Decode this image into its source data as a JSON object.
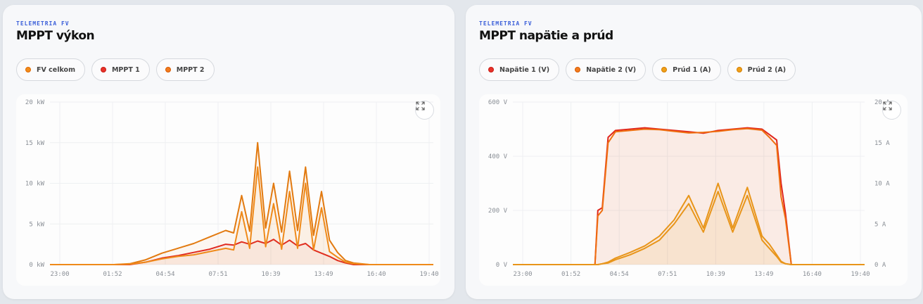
{
  "panels": [
    {
      "eyebrow": "TELEMETRIA FV",
      "title": "MPPT výkon",
      "legend": [
        {
          "label": "FV celkom",
          "color": "#f28c1c",
          "border": "#e06a00"
        },
        {
          "label": "MPPT 1",
          "color": "#e8322a",
          "border": "#c91c14"
        },
        {
          "label": "MPPT 2",
          "color": "#f27b1f",
          "border": "#d85a00"
        }
      ]
    },
    {
      "eyebrow": "TELEMETRIA FV",
      "title": "MPPT napätie a prúd",
      "legend": [
        {
          "label": "Napätie 1 (V)",
          "color": "#e8322a",
          "border": "#c91c14"
        },
        {
          "label": "Napätie 2 (V)",
          "color": "#f27b1f",
          "border": "#d85a00"
        },
        {
          "label": "Prúd 1 (A)",
          "color": "#f0a01a",
          "border": "#d47e00"
        },
        {
          "label": "Prúd 2 (A)",
          "color": "#f0a01a",
          "border": "#d47e00"
        }
      ]
    }
  ],
  "chart_data": [
    {
      "type": "line",
      "title": "MPPT výkon",
      "xlabel": "",
      "ylabel": "",
      "x_ticks": [
        "23:00",
        "01:52",
        "04:54",
        "07:51",
        "10:39",
        "13:49",
        "16:40",
        "19:40"
      ],
      "y_ticks": [
        "0 kW",
        "5 kW",
        "10 kW",
        "15 kW",
        "20 kW"
      ],
      "ylim": [
        0,
        20
      ],
      "x_hours": [
        0,
        4,
        5,
        6,
        7,
        8,
        9,
        10,
        11,
        11.5,
        12,
        12.5,
        13,
        13.5,
        14,
        14.5,
        15,
        15.5,
        16,
        16.5,
        17,
        17.5,
        18,
        18.5,
        19,
        20,
        24
      ],
      "series": [
        {
          "name": "FV celkom",
          "color": "#e27a10",
          "values": [
            0,
            0,
            0.1,
            0.6,
            1.4,
            2.0,
            2.6,
            3.4,
            4.2,
            3.9,
            8.5,
            4.1,
            15.0,
            4.5,
            10.0,
            4.0,
            11.5,
            4.2,
            12.0,
            3.6,
            9.0,
            3.0,
            1.5,
            0.5,
            0.2,
            0,
            0
          ]
        },
        {
          "name": "MPPT 1",
          "color": "#e02a20",
          "values": [
            0,
            0,
            0,
            0.3,
            0.8,
            1.1,
            1.5,
            1.9,
            2.5,
            2.4,
            2.8,
            2.5,
            2.9,
            2.6,
            3.1,
            2.4,
            3.0,
            2.3,
            2.6,
            1.8,
            1.4,
            1.0,
            0.5,
            0.2,
            0,
            0,
            0
          ]
        },
        {
          "name": "MPPT 2",
          "color": "#ef8a1a",
          "values": [
            0,
            0,
            0.05,
            0.3,
            0.7,
            1.0,
            1.2,
            1.6,
            2.0,
            1.8,
            6.5,
            2.0,
            12.0,
            2.2,
            7.5,
            1.9,
            9.0,
            2.0,
            10.0,
            1.8,
            7.0,
            1.6,
            0.9,
            0.3,
            0.1,
            0,
            0
          ]
        }
      ]
    },
    {
      "type": "line",
      "title": "MPPT napätie a prúd",
      "xlabel": "",
      "ylabel": "",
      "x_ticks": [
        "23:00",
        "01:52",
        "04:54",
        "07:51",
        "10:39",
        "13:49",
        "16:40",
        "19:40"
      ],
      "y_ticks_left": [
        "0 V",
        "200 V",
        "400 V",
        "600 V"
      ],
      "y_ticks_right": [
        "0 A",
        "5 A",
        "10 A",
        "15 A",
        "20 A"
      ],
      "ylim_left": [
        0,
        600
      ],
      "ylim_right": [
        0,
        20
      ],
      "x_hours": [
        0,
        5.6,
        5.8,
        6.1,
        6.5,
        7,
        8,
        9,
        10,
        11,
        12,
        13,
        14,
        15,
        16,
        17,
        17.5,
        18,
        18.3,
        18.6,
        19,
        24
      ],
      "series": [
        {
          "name": "Napätie 1 (V)",
          "color": "#e0261c",
          "values": [
            0,
            0,
            200,
            210,
            470,
            495,
            500,
            505,
            500,
            495,
            490,
            485,
            495,
            500,
            505,
            500,
            480,
            460,
            300,
            190,
            0,
            0
          ]
        },
        {
          "name": "Napätie 2 (V)",
          "color": "#ef6f10",
          "values": [
            0,
            0,
            180,
            200,
            450,
            490,
            495,
            500,
            498,
            492,
            486,
            488,
            492,
            498,
            502,
            496,
            470,
            440,
            250,
            170,
            0,
            0
          ]
        },
        {
          "name": "Prúd 1 (A)",
          "color": "#e8951a",
          "values": [
            0,
            0,
            0,
            0.1,
            0.3,
            0.8,
            1.5,
            2.3,
            3.5,
            5.5,
            8.5,
            4.5,
            10.0,
            4.5,
            9.5,
            3.5,
            2.5,
            1.2,
            0.4,
            0.1,
            0,
            0
          ]
        },
        {
          "name": "Prúd 2 (A)",
          "color": "#e8951a",
          "values": [
            0,
            0,
            0,
            0.1,
            0.2,
            0.6,
            1.2,
            2.0,
            3.0,
            5.0,
            7.5,
            4.0,
            9.0,
            4.0,
            8.5,
            3.0,
            2.0,
            1.0,
            0.3,
            0.1,
            0,
            0
          ]
        }
      ]
    }
  ]
}
